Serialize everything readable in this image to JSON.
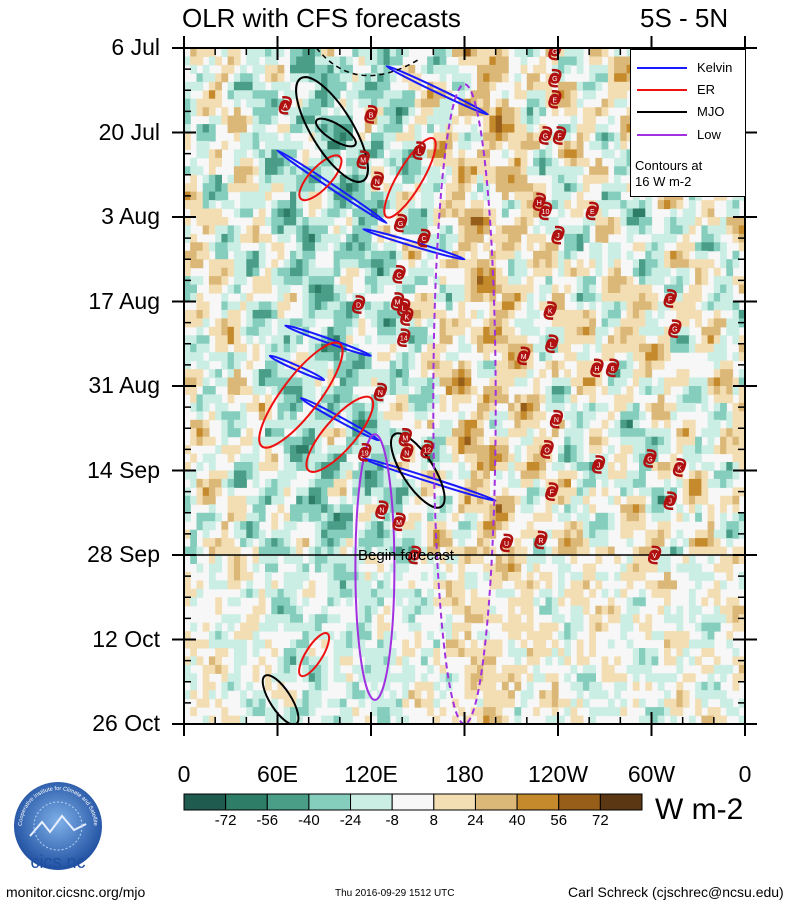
{
  "header": {
    "title": "OLR with CFS forecasts",
    "region": "5S - 5N"
  },
  "chart_data": {
    "type": "heatmap",
    "title": "OLR with CFS forecasts",
    "region": "5S - 5N",
    "x_axis": {
      "tick_labels": [
        "0",
        "60E",
        "120E",
        "180",
        "120W",
        "60W",
        "0"
      ],
      "tick_longitudes": [
        0,
        60,
        120,
        180,
        240,
        300,
        360
      ]
    },
    "y_axis": {
      "tick_labels": [
        "6 Jul",
        "20 Jul",
        "3 Aug",
        "17 Aug",
        "31 Aug",
        "14 Sep",
        "28 Sep",
        "12 Oct",
        "26 Oct"
      ],
      "tick_day_offsets": [
        0,
        14,
        28,
        42,
        56,
        70,
        84,
        98,
        112
      ]
    },
    "forecast_begin_label": "Begin forecast",
    "forecast_begin_day_offset": 84,
    "colorbar": {
      "levels": [
        "-72",
        "-56",
        "-40",
        "-24",
        "-8",
        "8",
        "24",
        "40",
        "56",
        "72"
      ],
      "colors": [
        "#1f5b4e",
        "#2e7d66",
        "#4a9e88",
        "#85cdbd",
        "#cbeee4",
        "#f7f7f7",
        "#f3deb4",
        "#dbb878",
        "#c48a2c",
        "#975e1a",
        "#5c3714"
      ],
      "units": "W m-2"
    },
    "legend": {
      "position": "top-right",
      "entries": [
        {
          "name": "Kelvin",
          "color": "#1a1aff"
        },
        {
          "name": "ER",
          "color": "#ee1111"
        },
        {
          "name": "MJO",
          "color": "#000000"
        },
        {
          "name": "Low",
          "color": "#a030e0"
        }
      ],
      "note_line1": "Contours at",
      "note_line2": "16 W m-2"
    },
    "cyclones": [
      {
        "label": "G",
        "lon": 238,
        "day": 0.5
      },
      {
        "label": "G",
        "lon": 238,
        "day": 5
      },
      {
        "label": "E",
        "lon": 238,
        "day": 8.5
      },
      {
        "label": "A",
        "lon": 65,
        "day": 9.5
      },
      {
        "label": "B",
        "lon": 120,
        "day": 11
      },
      {
        "label": "G",
        "lon": 232,
        "day": 14.5
      },
      {
        "label": "F",
        "lon": 241,
        "day": 14.5
      },
      {
        "label": "L",
        "lon": 151,
        "day": 17
      },
      {
        "label": "M",
        "lon": 115,
        "day": 18.5
      },
      {
        "label": "N",
        "lon": 124,
        "day": 22
      },
      {
        "label": "H",
        "lon": 228,
        "day": 25.5
      },
      {
        "label": "10",
        "lon": 232,
        "day": 27
      },
      {
        "label": "E",
        "lon": 262,
        "day": 27
      },
      {
        "label": "G",
        "lon": 139,
        "day": 29
      },
      {
        "label": "C",
        "lon": 154,
        "day": 31.5
      },
      {
        "label": "J",
        "lon": 240,
        "day": 31
      },
      {
        "label": "C",
        "lon": 138,
        "day": 37.5
      },
      {
        "label": "D",
        "lon": 112,
        "day": 42.5
      },
      {
        "label": "M",
        "lon": 137,
        "day": 42
      },
      {
        "label": "L",
        "lon": 141,
        "day": 43
      },
      {
        "label": "K",
        "lon": 143,
        "day": 44.5
      },
      {
        "label": "F",
        "lon": 312,
        "day": 41.5
      },
      {
        "label": "K",
        "lon": 235,
        "day": 43.5
      },
      {
        "label": "G",
        "lon": 315,
        "day": 46.5
      },
      {
        "label": "14",
        "lon": 141,
        "day": 48
      },
      {
        "label": "L",
        "lon": 236,
        "day": 49
      },
      {
        "label": "M",
        "lon": 218,
        "day": 51
      },
      {
        "label": "H",
        "lon": 265,
        "day": 53
      },
      {
        "label": "6",
        "lon": 275,
        "day": 53
      },
      {
        "label": "N",
        "lon": 126,
        "day": 57
      },
      {
        "label": "N",
        "lon": 239,
        "day": 61.5
      },
      {
        "label": "M",
        "lon": 142,
        "day": 64.5
      },
      {
        "label": "N",
        "lon": 143,
        "day": 67
      },
      {
        "label": "12",
        "lon": 156,
        "day": 66.5
      },
      {
        "label": "19",
        "lon": 116,
        "day": 67
      },
      {
        "label": "O",
        "lon": 233,
        "day": 66.5
      },
      {
        "label": "G",
        "lon": 299,
        "day": 68
      },
      {
        "label": "J",
        "lon": 266,
        "day": 69
      },
      {
        "label": "K",
        "lon": 318,
        "day": 69.5
      },
      {
        "label": "F",
        "lon": 236,
        "day": 73.5
      },
      {
        "label": "J",
        "lon": 312,
        "day": 75
      },
      {
        "label": "N",
        "lon": 127,
        "day": 76.5
      },
      {
        "label": "M",
        "lon": 138,
        "day": 78.5
      },
      {
        "label": "U",
        "lon": 207,
        "day": 82
      },
      {
        "label": "R",
        "lon": 229,
        "day": 81.5
      },
      {
        "label": "O",
        "lon": 148,
        "day": 84
      },
      {
        "label": "V",
        "lon": 302,
        "day": 84
      }
    ],
    "waves": [
      {
        "type": "Kelvin",
        "desc": "eastward ellipse",
        "lon_start": 130,
        "lon_end": 195,
        "day_start": 3,
        "day_end": 11
      },
      {
        "type": "Kelvin",
        "desc": "eastward ellipse",
        "lon_start": 60,
        "lon_end": 130,
        "day_start": 17,
        "day_end": 29
      },
      {
        "type": "Kelvin",
        "desc": "eastward ellipse",
        "lon_start": 115,
        "lon_end": 180,
        "day_start": 30,
        "day_end": 35
      },
      {
        "type": "Kelvin",
        "desc": "eastward ellipse",
        "lon_start": 65,
        "lon_end": 120,
        "day_start": 46,
        "day_end": 51
      },
      {
        "type": "Kelvin",
        "desc": "eastward ellipse",
        "lon_start": 55,
        "lon_end": 90,
        "day_start": 51,
        "day_end": 55
      },
      {
        "type": "Kelvin",
        "desc": "eastward ellipse",
        "lon_start": 75,
        "lon_end": 125,
        "day_start": 58,
        "day_end": 65
      },
      {
        "type": "Kelvin",
        "desc": "eastward ellipse",
        "lon_start": 115,
        "lon_end": 200,
        "day_start": 68,
        "day_end": 75
      },
      {
        "type": "ER",
        "desc": "westward ellipse",
        "lon_start": 130,
        "lon_end": 160,
        "day_start": 15,
        "day_end": 28
      },
      {
        "type": "ER",
        "desc": "westward ellipse",
        "lon_start": 75,
        "lon_end": 100,
        "day_start": 18,
        "day_end": 25
      },
      {
        "type": "ER",
        "desc": "westward ellipse",
        "lon_start": 50,
        "lon_end": 100,
        "day_start": 49,
        "day_end": 66
      },
      {
        "type": "ER",
        "desc": "westward ellipse",
        "lon_start": 80,
        "lon_end": 120,
        "day_start": 58,
        "day_end": 70
      },
      {
        "type": "ER",
        "desc": "westward ellipse",
        "lon_start": 75,
        "lon_end": 92,
        "day_start": 97,
        "day_end": 104
      },
      {
        "type": "MJO",
        "desc": "ellipse",
        "lon_start": 75,
        "lon_end": 115,
        "day_start": 5,
        "day_end": 22
      },
      {
        "type": "MJO",
        "desc": "ellipse",
        "lon_start": 85,
        "lon_end": 110,
        "day_start": 12,
        "day_end": 16
      },
      {
        "type": "MJO",
        "desc": "ellipse",
        "lon_start": 135,
        "lon_end": 165,
        "day_start": 64,
        "day_end": 76
      },
      {
        "type": "MJO",
        "desc": "ellipse",
        "lon_start": 52,
        "lon_end": 72,
        "day_start": 104,
        "day_end": 112
      },
      {
        "type": "Low",
        "desc": "low-frequency contour",
        "lon_start": 110,
        "lon_end": 135,
        "day_start": 64,
        "day_end": 108
      },
      {
        "type": "Low",
        "desc": "low-frequency contour (dashed, forecast)",
        "lon_start": 160,
        "lon_end": 200,
        "day_start": 6,
        "day_end": 112
      }
    ]
  },
  "footer": {
    "logo_text": "cics.nc",
    "logo_ring_text": "Cooperative Institute for Climate and Satellites",
    "left": "monitor.cicsnc.org/mjo",
    "center": "Thu 2016-09-29 1512 UTC",
    "right": "Carl Schreck (cjschrec@ncsu.edu)"
  }
}
